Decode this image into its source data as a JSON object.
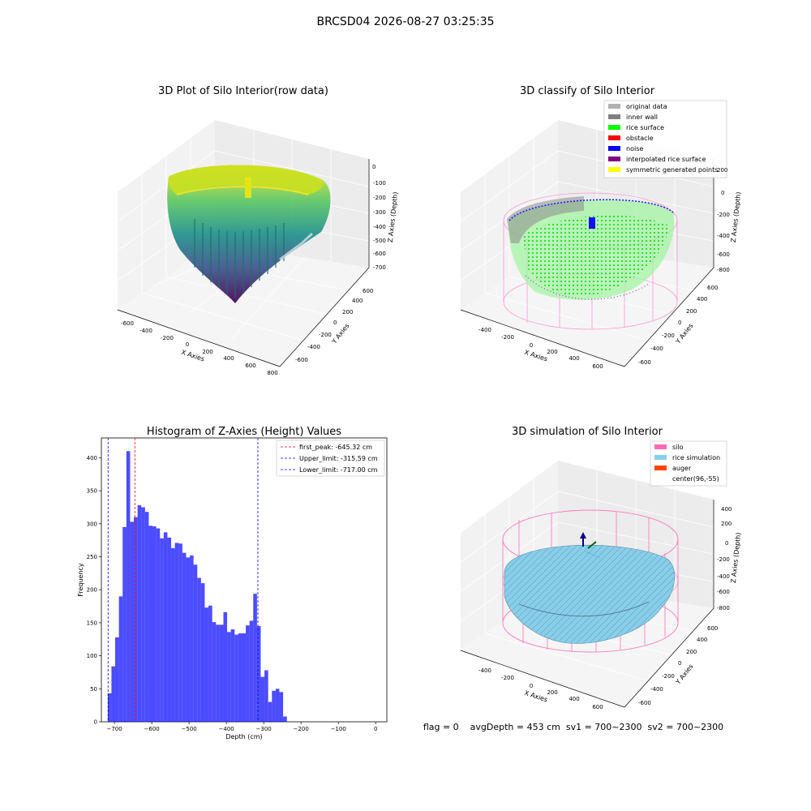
{
  "figure": {
    "suptitle": "BRCSD04 2026-08-27 03:25:35",
    "footer": "flag = 0    avgDepth = 453 cm  sv1 = 700~2300  sv2 = 700~2300"
  },
  "chart_data": [
    {
      "type": "scatter",
      "title": "3D Plot of Silo Interior(row data)",
      "xlabel": "X Axies",
      "ylabel": "Y Axies",
      "zlabel": "Z Axies (Depth)",
      "x_ticks": [
        "-600",
        "-400",
        "-200",
        "0",
        "200",
        "400",
        "600",
        "800"
      ],
      "y_ticks": [
        "-600",
        "-400",
        "-200",
        "0",
        "200",
        "400",
        "600"
      ],
      "z_ticks": [
        "0",
        "-100",
        "-200",
        "-300",
        "-400",
        "-500",
        "-600",
        "-700"
      ],
      "colormap": "viridis"
    },
    {
      "type": "scatter",
      "title": "3D classify of Silo Interior",
      "xlabel": "X Axies",
      "ylabel": "Y Axies",
      "zlabel": "Z Axies (Depth)",
      "x_ticks": [
        "-400",
        "-200",
        "0",
        "200",
        "400",
        "600"
      ],
      "y_ticks": [
        "-600",
        "-400",
        "-200",
        "0",
        "200",
        "400",
        "600"
      ],
      "z_ticks": [
        "200",
        "0",
        "-200",
        "-400",
        "-600",
        "-800"
      ],
      "legend_position": "top-right",
      "legend": [
        {
          "label": "original data",
          "color": "#b0b0b0"
        },
        {
          "label": "inner wall",
          "color": "#808080"
        },
        {
          "label": "rice surface",
          "color": "#00ff00"
        },
        {
          "label": "obstacle",
          "color": "#ff0000"
        },
        {
          "label": "noise",
          "color": "#0000ff"
        },
        {
          "label": "interpolated rice surface",
          "color": "#800080"
        },
        {
          "label": "symmetric generated points",
          "color": "#ffff00"
        }
      ]
    },
    {
      "type": "bar",
      "title": "Histogram of Z-Axies (Height) Values",
      "xlabel": "Depth (cm)",
      "ylabel": "Frequency",
      "xlim": [
        -735,
        30
      ],
      "ylim": [
        0,
        430
      ],
      "x_ticks": [
        -700,
        -600,
        -500,
        -400,
        -300,
        -200,
        -100,
        0
      ],
      "y_ticks": [
        0,
        50,
        100,
        150,
        200,
        250,
        300,
        350,
        400
      ],
      "bar_color": "#0000ff",
      "bins": [
        {
          "x0": -718,
          "x1": -708,
          "count": 43
        },
        {
          "x0": -708,
          "x1": -698,
          "count": 84
        },
        {
          "x0": -698,
          "x1": -688,
          "count": 128
        },
        {
          "x0": -688,
          "x1": -678,
          "count": 190
        },
        {
          "x0": -678,
          "x1": -668,
          "count": 295
        },
        {
          "x0": -668,
          "x1": -658,
          "count": 410
        },
        {
          "x0": -658,
          "x1": -648,
          "count": 303
        },
        {
          "x0": -648,
          "x1": -638,
          "count": 310
        },
        {
          "x0": -638,
          "x1": -628,
          "count": 328
        },
        {
          "x0": -628,
          "x1": -618,
          "count": 325
        },
        {
          "x0": -618,
          "x1": -608,
          "count": 318
        },
        {
          "x0": -608,
          "x1": -598,
          "count": 297
        },
        {
          "x0": -598,
          "x1": -588,
          "count": 296
        },
        {
          "x0": -588,
          "x1": -578,
          "count": 293
        },
        {
          "x0": -578,
          "x1": -568,
          "count": 278
        },
        {
          "x0": -568,
          "x1": -558,
          "count": 287
        },
        {
          "x0": -558,
          "x1": -548,
          "count": 279
        },
        {
          "x0": -548,
          "x1": -538,
          "count": 263
        },
        {
          "x0": -538,
          "x1": -528,
          "count": 271
        },
        {
          "x0": -528,
          "x1": -518,
          "count": 270
        },
        {
          "x0": -518,
          "x1": -508,
          "count": 256
        },
        {
          "x0": -508,
          "x1": -498,
          "count": 249
        },
        {
          "x0": -498,
          "x1": -488,
          "count": 252
        },
        {
          "x0": -488,
          "x1": -478,
          "count": 238
        },
        {
          "x0": -478,
          "x1": -468,
          "count": 218
        },
        {
          "x0": -468,
          "x1": -458,
          "count": 210
        },
        {
          "x0": -458,
          "x1": -448,
          "count": 173
        },
        {
          "x0": -448,
          "x1": -438,
          "count": 176
        },
        {
          "x0": -438,
          "x1": -428,
          "count": 151
        },
        {
          "x0": -428,
          "x1": -418,
          "count": 147
        },
        {
          "x0": -418,
          "x1": -408,
          "count": 147
        },
        {
          "x0": -408,
          "x1": -398,
          "count": 166
        },
        {
          "x0": -398,
          "x1": -388,
          "count": 136
        },
        {
          "x0": -388,
          "x1": -378,
          "count": 140
        },
        {
          "x0": -378,
          "x1": -368,
          "count": 132
        },
        {
          "x0": -368,
          "x1": -358,
          "count": 134
        },
        {
          "x0": -358,
          "x1": -348,
          "count": 134
        },
        {
          "x0": -348,
          "x1": -338,
          "count": 146
        },
        {
          "x0": -338,
          "x1": -328,
          "count": 153
        },
        {
          "x0": -328,
          "x1": -318,
          "count": 194
        },
        {
          "x0": -318,
          "x1": -308,
          "count": 145
        },
        {
          "x0": -308,
          "x1": -298,
          "count": 68
        },
        {
          "x0": -298,
          "x1": -288,
          "count": 78
        },
        {
          "x0": -288,
          "x1": -278,
          "count": 30
        },
        {
          "x0": -278,
          "x1": -268,
          "count": 47
        },
        {
          "x0": -268,
          "x1": -258,
          "count": 50
        },
        {
          "x0": -258,
          "x1": -248,
          "count": 45
        },
        {
          "x0": -248,
          "x1": -238,
          "count": 8
        }
      ],
      "reference_lines": [
        {
          "label": "first_peak: -645.32 cm",
          "value": -645.32,
          "color": "#ff0000"
        },
        {
          "label": "Upper_limit: -315.59 cm",
          "value": -315.59,
          "color": "#0000ff"
        },
        {
          "label": "Lower_limit: -717.00 cm",
          "value": -717.0,
          "color": "#0000ff"
        }
      ],
      "legend_position": "top-right"
    },
    {
      "type": "scatter",
      "title": "3D simulation of Silo Interior",
      "xlabel": "X Axies",
      "ylabel": "Y Axies",
      "zlabel": "Z Axies (Depth)",
      "x_ticks": [
        "-400",
        "-200",
        "0",
        "200",
        "400",
        "600"
      ],
      "y_ticks": [
        "-600",
        "-400",
        "-200",
        "0",
        "200",
        "400",
        "600"
      ],
      "z_ticks": [
        "400",
        "200",
        "0",
        "-200",
        "-400",
        "-600",
        "-800"
      ],
      "legend_position": "top-right",
      "legend": [
        {
          "label": "silo",
          "color": "#ff69b4"
        },
        {
          "label": "rice simulation",
          "color": "#87ceeb"
        },
        {
          "label": "auger",
          "color": "#ff4500"
        },
        {
          "label": "center(96,-55)",
          "color": "#ffffff"
        }
      ]
    }
  ]
}
